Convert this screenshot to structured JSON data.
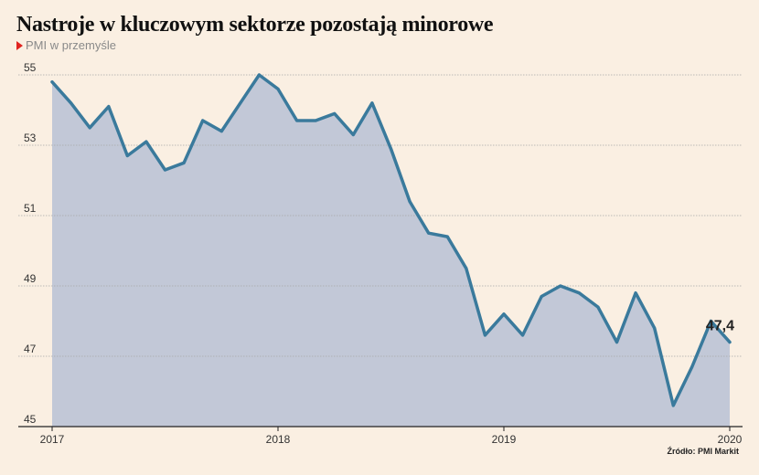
{
  "title": "Nastroje w kluczowym sektorze pozostają minorowe",
  "subtitle": "PMI w przemyśle",
  "source": "Źródło: PMI Markit",
  "colors": {
    "line": "#3a7a9c",
    "area": "#c2c8d7",
    "grid": "#a8a8a8",
    "background": "#faefe2",
    "accent": "#e0231f"
  },
  "chart_data": {
    "type": "area",
    "title": "Nastroje w kluczowym sektorze pozostają minorowe",
    "subtitle": "PMI w przemyśle",
    "xlabel": "",
    "ylabel": "",
    "ylim": [
      45,
      55
    ],
    "yticks": [
      45,
      47,
      49,
      51,
      53,
      55
    ],
    "xticks": [
      "2017",
      "2018",
      "2019",
      "2020"
    ],
    "grid": true,
    "series": [
      {
        "x": [
          "2017-01",
          "2017-02",
          "2017-03",
          "2017-04",
          "2017-05",
          "2017-06",
          "2017-07",
          "2017-08",
          "2017-09",
          "2017-10",
          "2017-11",
          "2017-12",
          "2018-01",
          "2018-02",
          "2018-03",
          "2018-04",
          "2018-05",
          "2018-06",
          "2018-07",
          "2018-08",
          "2018-09",
          "2018-10",
          "2018-11",
          "2018-12",
          "2019-01",
          "2019-02",
          "2019-03",
          "2019-04",
          "2019-05",
          "2019-06",
          "2019-07",
          "2019-08",
          "2019-09",
          "2019-10",
          "2019-11",
          "2019-12",
          "2020-01"
        ],
        "values": [
          54.8,
          54.2,
          53.5,
          54.1,
          52.7,
          53.1,
          52.3,
          52.5,
          53.7,
          53.4,
          54.2,
          55.0,
          54.6,
          53.7,
          53.7,
          53.9,
          53.3,
          54.2,
          52.9,
          51.4,
          50.5,
          50.4,
          49.5,
          47.6,
          48.2,
          47.6,
          48.7,
          49.0,
          48.8,
          48.4,
          47.4,
          48.8,
          47.8,
          45.6,
          46.7,
          48.0,
          47.4
        ]
      }
    ],
    "last_value_label": "47,4"
  }
}
